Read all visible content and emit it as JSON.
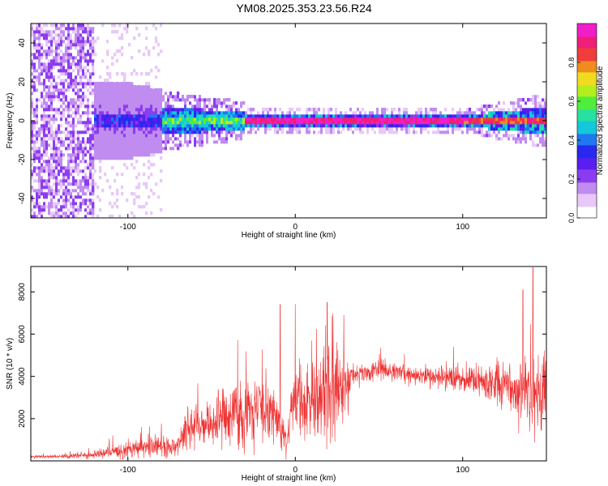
{
  "title": "YM08.2025.353.23.56.R24",
  "colors": {
    "signal": "#ee3333",
    "colormap": [
      "#ffffff",
      "#e8c8f8",
      "#c08cf0",
      "#8c3cf0",
      "#5a1ef0",
      "#2828f0",
      "#1e78f0",
      "#14c8dc",
      "#28e0a0",
      "#50ee3c",
      "#b4ee1e",
      "#f0dc1e",
      "#f08c1e",
      "#f03c3c",
      "#f01e78",
      "#f01ec8"
    ]
  },
  "chart_data": [
    {
      "type": "heatmap",
      "title": "",
      "xlabel": "Height of straight line (km)",
      "ylabel": "Frequency (Hz)",
      "xlim": [
        -158,
        150
      ],
      "ylim": [
        -50,
        50
      ],
      "x_ticks": [
        -100,
        0,
        100
      ],
      "y_ticks": [
        -40,
        -20,
        0,
        20,
        40
      ],
      "grid": false,
      "colorbar": {
        "label": "Normalized spectral amplitude",
        "range": [
          0,
          1
        ],
        "ticks": [
          0.0,
          0.2,
          0.4,
          0.6,
          0.8
        ]
      },
      "features": [
        {
          "region": [
            -158,
            -120
          ],
          "description": "noise across all frequencies",
          "amplitude": 0.1
        },
        {
          "region": [
            -120,
            -80
          ],
          "description": "sparse noise and onset of signal near 0 Hz",
          "amplitude": 0.2
        },
        {
          "region": [
            -80,
            -30
          ],
          "description": "signal band around 0 Hz, width about 10 Hz",
          "amplitude": 0.5
        },
        {
          "region": [
            -30,
            100
          ],
          "description": "narrow line at 0 Hz",
          "amplitude": 0.95
        },
        {
          "region": [
            100,
            150
          ],
          "description": "signal band around 0 Hz widening",
          "amplitude": 0.6
        }
      ]
    },
    {
      "type": "line",
      "title": "",
      "xlabel": "Height of straight line (km)",
      "ylabel": "SNR (10 * v/v)",
      "xlim": [
        -158,
        150
      ],
      "ylim": [
        0,
        9200
      ],
      "x_ticks": [
        -100,
        0,
        100
      ],
      "y_ticks": [
        2000,
        4000,
        6000,
        8000
      ],
      "grid": false,
      "series": [
        {
          "x": [
            -158,
            -140,
            -130,
            -120,
            -110,
            -100,
            -90,
            -80,
            -70,
            -66,
            -60,
            -50,
            -40,
            -30,
            -20,
            -10,
            -8,
            -5,
            -2,
            0,
            5,
            10,
            15,
            18,
            22,
            25,
            30,
            33,
            35,
            40,
            50,
            60,
            70,
            80,
            90,
            100,
            110,
            120,
            130,
            135,
            140,
            145,
            150
          ],
          "mean": [
            200,
            200,
            250,
            300,
            400,
            500,
            600,
            700,
            700,
            1500,
            1600,
            1800,
            2200,
            2300,
            2300,
            2000,
            1500,
            800,
            3000,
            3300,
            2800,
            2700,
            3100,
            3500,
            3600,
            3500,
            3200,
            4000,
            4200,
            4100,
            4300,
            4200,
            4100,
            4000,
            4000,
            3900,
            3800,
            3600,
            3400,
            3200,
            3000,
            3200,
            3200
          ],
          "spread": [
            100,
            100,
            150,
            250,
            400,
            500,
            600,
            600,
            600,
            1100,
            1300,
            1600,
            1800,
            2200,
            2000,
            1800,
            1400,
            800,
            1800,
            2300,
            2200,
            2300,
            2600,
            3000,
            3200,
            2800,
            2400,
            900,
            700,
            600,
            600,
            600,
            600,
            600,
            700,
            800,
            1000,
            1400,
            1800,
            2300,
            2800,
            2800,
            2600
          ],
          "peaks": [
            {
              "x": -9,
              "y": 7400
            },
            {
              "x": 19,
              "y": 7500
            },
            {
              "x": 29,
              "y": 6900
            },
            {
              "x": 136,
              "y": 8100
            },
            {
              "x": 142,
              "y": 9150
            }
          ]
        }
      ]
    }
  ]
}
